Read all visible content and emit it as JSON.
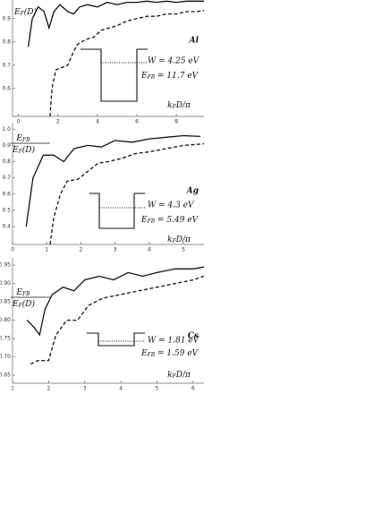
{
  "chart_data": [
    {
      "type": "line",
      "metal": "Al",
      "ylabel": {
        "main": "E",
        "sub": "F",
        "rest": "(D)"
      },
      "xlabel": {
        "main": "k",
        "sub": "F",
        "rest": "D/π"
      },
      "w_label": "W = 4.25 eV",
      "ef_label": {
        "main": "E",
        "sub": "FB",
        "rest": " = 11.7 eV"
      },
      "xlim": [
        -0.3,
        9.4
      ],
      "ylim": [
        0.48,
        0.98
      ],
      "xticks": [
        0,
        2,
        4,
        6,
        8
      ],
      "yticks": [
        0.6,
        0.7,
        0.8,
        0.9
      ],
      "series": [
        {
          "style": "solid",
          "color": "#111",
          "x": [
            0.5,
            0.7,
            1.0,
            1.3,
            1.55,
            1.8,
            2.1,
            2.5,
            2.8,
            3.1,
            3.5,
            4,
            4.5,
            5,
            5.5,
            6,
            6.5,
            7,
            7.5,
            8,
            8.5,
            9,
            9.4
          ],
          "values": [
            0.78,
            0.9,
            0.95,
            0.93,
            0.86,
            0.93,
            0.96,
            0.93,
            0.92,
            0.95,
            0.96,
            0.95,
            0.97,
            0.96,
            0.97,
            0.97,
            0.975,
            0.97,
            0.975,
            0.97,
            0.975,
            0.975,
            0.975
          ]
        },
        {
          "style": "dashed",
          "color": "#111",
          "x": [
            1.6,
            1.7,
            1.9,
            2.2,
            2.5,
            2.8,
            3.0,
            3.4,
            3.8,
            4.2,
            4.6,
            5,
            5.5,
            6,
            6.5,
            7,
            7.5,
            8,
            8.5,
            9,
            9.4
          ],
          "values": [
            0.48,
            0.6,
            0.68,
            0.69,
            0.7,
            0.76,
            0.79,
            0.81,
            0.82,
            0.85,
            0.86,
            0.87,
            0.89,
            0.9,
            0.91,
            0.91,
            0.92,
            0.92,
            0.93,
            0.93,
            0.935
          ]
        }
      ]
    },
    {
      "type": "line",
      "metal": "Ag",
      "ylabel": {
        "num": {
          "main": "E",
          "sub": "FB"
        },
        "den": {
          "main": "E",
          "sub": "F",
          "rest": "(D)"
        }
      },
      "xlabel": {
        "main": "k",
        "sub": "F",
        "rest": "D/π"
      },
      "w_label": "W = 4.3 eV",
      "ef_label": {
        "main": "E",
        "sub": "FB",
        "rest": " = 5.49 eV"
      },
      "xlim": [
        0,
        5.6
      ],
      "ylim": [
        0.29,
        1.04
      ],
      "xticks": [
        0,
        1,
        2,
        3,
        4,
        5
      ],
      "yticks": [
        0.4,
        0.5,
        0.6,
        0.7,
        0.8,
        0.9,
        {
          "value": 1.0,
          "label": "1.0"
        }
      ],
      "series": [
        {
          "style": "solid",
          "color": "#111",
          "x": [
            0.4,
            0.6,
            0.9,
            1.2,
            1.5,
            1.8,
            2.2,
            2.6,
            3,
            3.5,
            4,
            4.5,
            5,
            5.5
          ],
          "values": [
            0.4,
            0.7,
            0.84,
            0.84,
            0.8,
            0.88,
            0.9,
            0.89,
            0.93,
            0.92,
            0.94,
            0.95,
            0.96,
            0.955
          ]
        },
        {
          "style": "dashed",
          "color": "#111",
          "x": [
            1.1,
            1.2,
            1.4,
            1.6,
            1.9,
            2.2,
            2.5,
            2.8,
            3.2,
            3.6,
            4,
            4.5,
            5,
            5.6
          ],
          "values": [
            0.29,
            0.45,
            0.6,
            0.68,
            0.69,
            0.74,
            0.79,
            0.8,
            0.82,
            0.85,
            0.86,
            0.88,
            0.9,
            0.91
          ]
        }
      ]
    },
    {
      "type": "line",
      "metal": "Cs",
      "ylabel": {
        "num": {
          "main": "E",
          "sub": "FB"
        },
        "den": {
          "main": "E",
          "sub": "F",
          "rest": "(D)"
        }
      },
      "xlabel": {
        "main": "k",
        "sub": "F",
        "rest": "D/π"
      },
      "w_label": "W = 1.81 eV",
      "ef_label": {
        "main": "E",
        "sub": "FB",
        "rest": " = 1.59 eV"
      },
      "xlim": [
        1,
        6.3
      ],
      "ylim": [
        0.628,
        0.97
      ],
      "xticks": [
        1,
        2,
        3,
        4,
        5,
        6
      ],
      "yticks": [
        {
          "value": 0.65,
          "label": "0.65"
        },
        {
          "value": 0.7,
          "label": "0.70"
        },
        {
          "value": 0.75,
          "label": "0.75"
        },
        {
          "value": 0.8,
          "label": "0.80"
        },
        {
          "value": 0.85,
          "label": "0.85"
        },
        {
          "value": 0.9,
          "label": "0.90"
        },
        {
          "value": 0.95,
          "label": "0.95"
        }
      ],
      "series": [
        {
          "style": "solid",
          "color": "#111",
          "x": [
            1.4,
            1.6,
            1.75,
            1.9,
            2.1,
            2.4,
            2.7,
            3,
            3.4,
            3.8,
            4.2,
            4.6,
            5,
            5.5,
            6,
            6.3
          ],
          "values": [
            0.8,
            0.78,
            0.76,
            0.83,
            0.87,
            0.89,
            0.88,
            0.91,
            0.92,
            0.91,
            0.93,
            0.92,
            0.93,
            0.94,
            0.94,
            0.945
          ]
        },
        {
          "style": "dashed",
          "color": "#111",
          "x": [
            1.5,
            1.7,
            1.9,
            2.0,
            2.2,
            2.5,
            2.8,
            3.1,
            3.5,
            4,
            4.5,
            5,
            5.5,
            6,
            6.3
          ],
          "values": [
            0.68,
            0.69,
            0.69,
            0.69,
            0.76,
            0.8,
            0.8,
            0.84,
            0.86,
            0.87,
            0.88,
            0.89,
            0.9,
            0.91,
            0.92
          ]
        }
      ]
    }
  ]
}
